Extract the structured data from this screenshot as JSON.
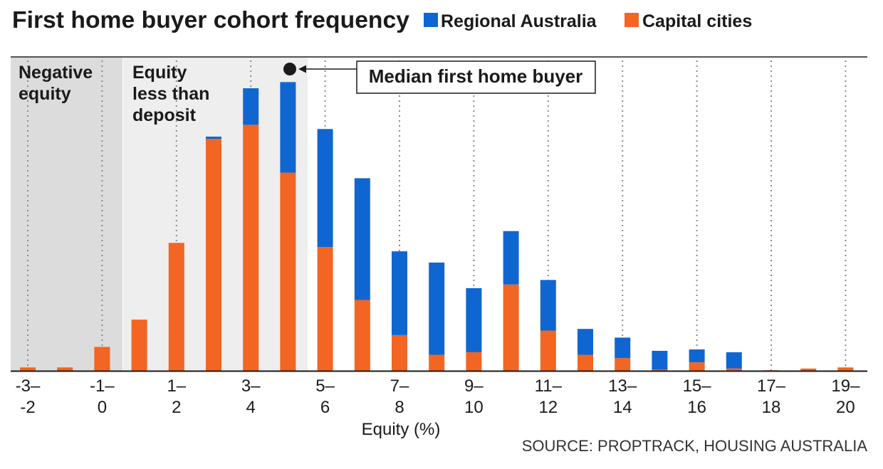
{
  "chart_data": {
    "type": "bar",
    "stacked": true,
    "title": "First home buyer cohort frequency",
    "xlabel": "Equity (%)",
    "source": "SOURCE: PROPTRACK, HOUSING AUSTRALIA",
    "legend_position": "top",
    "grid": "dotted vertical lines at labeled ticks",
    "categories": [
      "-3 to -2",
      "-2 to -1",
      "-1 to 0",
      "0 to 1",
      "1 to 2",
      "2 to 3",
      "3 to 4",
      "4 to 5",
      "5 to 6",
      "6 to 7",
      "7 to 8",
      "8 to 9",
      "9 to 10",
      "10 to 11",
      "11 to 12",
      "12 to 13",
      "13 to 14",
      "14 to 15",
      "15 to 16",
      "16 to 17",
      "17 to 18",
      "18 to 19",
      "19 to 20"
    ],
    "tick_labels": [
      {
        "top": "-3–",
        "bottom": "-2"
      },
      {
        "top": "-1–",
        "bottom": "0"
      },
      {
        "top": "1–",
        "bottom": "2"
      },
      {
        "top": "3–",
        "bottom": "4"
      },
      {
        "top": "5–",
        "bottom": "6"
      },
      {
        "top": "7–",
        "bottom": "8"
      },
      {
        "top": "9–",
        "bottom": "10"
      },
      {
        "top": "11–",
        "bottom": "12"
      },
      {
        "top": "13–",
        "bottom": "14"
      },
      {
        "top": "15–",
        "bottom": "16"
      },
      {
        "top": "17–",
        "bottom": "18"
      },
      {
        "top": "19–",
        "bottom": "20"
      }
    ],
    "ylim": [
      0,
      100
    ],
    "series": [
      {
        "name": "Capital cities",
        "color": "#f26522",
        "values": [
          1.2,
          1.2,
          8.5,
          18.2,
          45.5,
          82.5,
          87.5,
          70.5,
          44,
          25.2,
          12.7,
          5.7,
          6.6,
          30.7,
          14.3,
          5.7,
          4.5,
          0.4,
          3.0,
          0.8,
          0.2,
          0.8,
          1.2
        ]
      },
      {
        "name": "Regional Australia",
        "color": "#1066d0",
        "values": [
          0,
          0,
          0,
          0,
          0,
          0.8,
          13.0,
          32.2,
          42.0,
          43.3,
          29.8,
          32.8,
          22.8,
          19.0,
          18.0,
          9.2,
          7.3,
          6.7,
          4.6,
          5.8,
          0,
          0,
          0
        ]
      }
    ],
    "regions": [
      {
        "label_lines": [
          "Negative",
          "equity"
        ],
        "from": -3,
        "to": 0,
        "color": "#dcdcdc"
      },
      {
        "label_lines": [
          "Equity",
          "less than",
          "deposit"
        ],
        "from": 0,
        "to": 5,
        "color": "#eeeeee"
      }
    ],
    "annotation": {
      "text": "Median first home buyer",
      "x": 4.5
    }
  }
}
